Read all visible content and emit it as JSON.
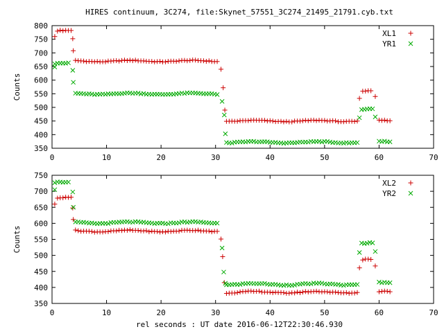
{
  "page_title": "HIRES continuum, 3C274, file:Skynet_57551_3C274_21495_21791.cyb.txt",
  "x_axis_label": "rel seconds : UT date 2016-06-12T22:30:46.930",
  "chart_data": [
    {
      "type": "scatter",
      "title": "HIRES continuum, 3C274, file:Skynet_57551_3C274_21495_21791.cyb.txt",
      "xlabel": "",
      "ylabel": "Counts",
      "xlim": [
        0,
        70
      ],
      "ylim": [
        350,
        800
      ],
      "x_ticks": [
        0,
        10,
        20,
        30,
        40,
        50,
        60,
        70
      ],
      "y_ticks": [
        350,
        400,
        450,
        500,
        550,
        600,
        650,
        700,
        750,
        800
      ],
      "legend_position": "top-right",
      "grid": false,
      "series": [
        {
          "name": "XL1",
          "marker": "plus",
          "color": "#cc0000",
          "segments": [
            {
              "x_start": 1.0,
              "x_end": 3.5,
              "value": 780
            },
            {
              "x_start": 4.3,
              "x_end": 30.5,
              "value": 670
            },
            {
              "x_start": 32.0,
              "x_end": 56.0,
              "value": 450
            },
            {
              "x_start": 57.0,
              "x_end": 58.8,
              "value": 560
            },
            {
              "x_start": 60.0,
              "x_end": 62.0,
              "value": 450
            }
          ],
          "points": [
            {
              "x": 0.5,
              "y": 760
            },
            {
              "x": 3.8,
              "y": 752
            },
            {
              "x": 3.9,
              "y": 708
            },
            {
              "x": 31.0,
              "y": 640
            },
            {
              "x": 31.4,
              "y": 572
            },
            {
              "x": 31.7,
              "y": 490
            },
            {
              "x": 56.4,
              "y": 533
            },
            {
              "x": 59.3,
              "y": 540
            }
          ]
        },
        {
          "name": "YR1",
          "marker": "cross",
          "color": "#00aa00",
          "segments": [
            {
              "x_start": 0.5,
              "x_end": 3.0,
              "value": 660
            },
            {
              "x_start": 4.3,
              "x_end": 30.5,
              "value": 550
            },
            {
              "x_start": 32.0,
              "x_end": 56.0,
              "value": 372
            },
            {
              "x_start": 56.8,
              "x_end": 58.8,
              "value": 492
            },
            {
              "x_start": 60.0,
              "x_end": 62.0,
              "value": 373
            }
          ],
          "points": [
            {
              "x": 0.5,
              "y": 648
            },
            {
              "x": 3.8,
              "y": 636
            },
            {
              "x": 3.9,
              "y": 592
            },
            {
              "x": 31.2,
              "y": 522
            },
            {
              "x": 31.6,
              "y": 472
            },
            {
              "x": 31.8,
              "y": 403
            },
            {
              "x": 56.4,
              "y": 462
            },
            {
              "x": 59.3,
              "y": 465
            }
          ]
        }
      ]
    },
    {
      "type": "scatter",
      "title": "",
      "xlabel": "rel seconds : UT date 2016-06-12T22:30:46.930",
      "ylabel": "Counts",
      "xlim": [
        0,
        70
      ],
      "ylim": [
        350,
        750
      ],
      "x_ticks": [
        0,
        10,
        20,
        30,
        40,
        50,
        60,
        70
      ],
      "y_ticks": [
        350,
        400,
        450,
        500,
        550,
        600,
        650,
        700,
        750
      ],
      "legend_position": "top-right",
      "grid": false,
      "series": [
        {
          "name": "XL2",
          "marker": "plus",
          "color": "#cc0000",
          "segments": [
            {
              "x_start": 1.0,
              "x_end": 3.5,
              "value": 678
            },
            {
              "x_start": 4.3,
              "x_end": 30.5,
              "value": 576
            },
            {
              "x_start": 32.0,
              "x_end": 56.0,
              "value": 385
            },
            {
              "x_start": 57.0,
              "x_end": 58.8,
              "value": 487
            },
            {
              "x_start": 60.0,
              "x_end": 62.0,
              "value": 385
            }
          ],
          "points": [
            {
              "x": 0.5,
              "y": 660
            },
            {
              "x": 3.8,
              "y": 648
            },
            {
              "x": 3.9,
              "y": 612
            },
            {
              "x": 31.0,
              "y": 551
            },
            {
              "x": 31.3,
              "y": 496
            },
            {
              "x": 31.6,
              "y": 415
            },
            {
              "x": 56.4,
              "y": 461
            },
            {
              "x": 59.3,
              "y": 467
            }
          ]
        },
        {
          "name": "YR2",
          "marker": "cross",
          "color": "#00aa00",
          "segments": [
            {
              "x_start": 0.5,
              "x_end": 3.0,
              "value": 727
            },
            {
              "x_start": 4.3,
              "x_end": 30.5,
              "value": 602
            },
            {
              "x_start": 32.0,
              "x_end": 56.0,
              "value": 410
            },
            {
              "x_start": 56.8,
              "x_end": 58.8,
              "value": 538
            },
            {
              "x_start": 60.0,
              "x_end": 62.0,
              "value": 413
            }
          ],
          "points": [
            {
              "x": 0.5,
              "y": 705
            },
            {
              "x": 3.8,
              "y": 698
            },
            {
              "x": 3.9,
              "y": 650
            },
            {
              "x": 31.2,
              "y": 523
            },
            {
              "x": 31.5,
              "y": 448
            },
            {
              "x": 31.8,
              "y": 413
            },
            {
              "x": 56.4,
              "y": 509
            },
            {
              "x": 59.3,
              "y": 512
            }
          ]
        }
      ]
    }
  ]
}
